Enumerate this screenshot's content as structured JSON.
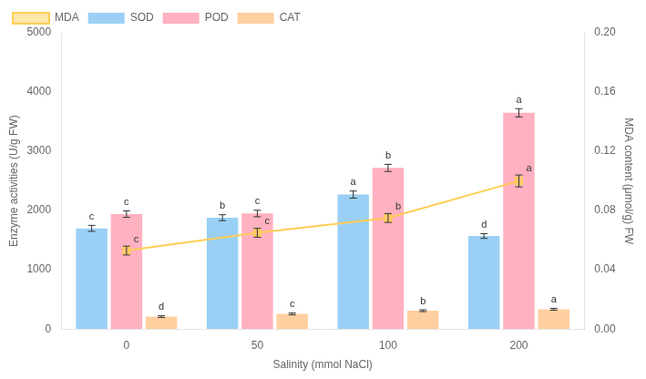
{
  "chart_data": {
    "type": "bar",
    "x_label": "Salinity (mmol NaCl)",
    "y_label": "Enzyme activities (U/g FW)",
    "y2_label": "MDA content (μmol/g) FW",
    "categories": [
      "0",
      "50",
      "100",
      "200"
    ],
    "series": [
      {
        "name": "SOD",
        "values": [
          1700,
          1880,
          2270,
          1570
        ],
        "errors": [
          50,
          50,
          60,
          40
        ],
        "annotations": [
          "c",
          "b",
          "a",
          "d"
        ]
      },
      {
        "name": "POD",
        "values": [
          1940,
          1950,
          2720,
          3650
        ],
        "errors": [
          55,
          55,
          60,
          70
        ],
        "annotations": [
          "c",
          "c",
          "b",
          "a"
        ]
      },
      {
        "name": "CAT",
        "values": [
          210,
          255,
          310,
          335
        ],
        "errors": [
          15,
          15,
          15,
          15
        ],
        "annotations": [
          "d",
          "c",
          "b",
          "a"
        ]
      },
      {
        "name": "MDA",
        "type": "line",
        "axis": "y2",
        "marker": "square",
        "values": [
          0.053,
          0.065,
          0.075,
          0.1
        ],
        "errors": [
          0.003,
          0.003,
          0.003,
          0.004
        ],
        "annotations": [
          "c",
          "c",
          "b",
          "a"
        ]
      }
    ],
    "ylim": [
      0,
      5000
    ],
    "yticks": [
      0,
      1000,
      2000,
      3000,
      4000,
      5000
    ],
    "y2lim": [
      0,
      0.2
    ],
    "y2ticks": [
      {
        "value": 0,
        "label": "0.00"
      },
      0.04,
      0.08,
      0.12,
      0.16,
      {
        "value": 0.2,
        "label": "0.20"
      }
    ],
    "legend": "upper left",
    "grid": false
  }
}
